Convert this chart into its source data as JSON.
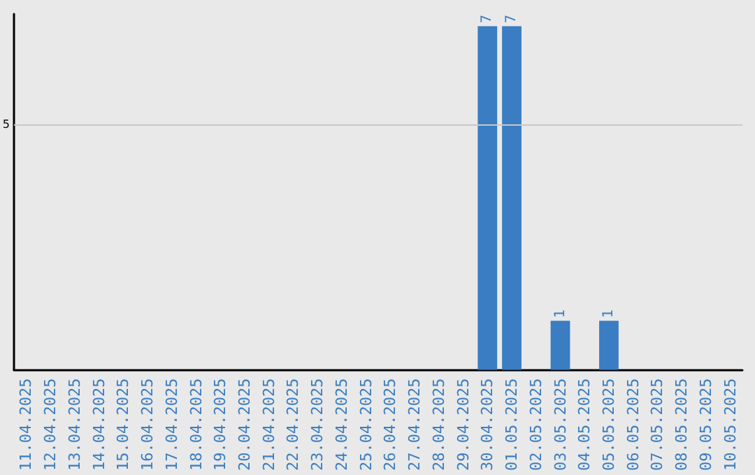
{
  "chart_data": {
    "type": "bar",
    "categories": [
      "11.04.2025",
      "12.04.2025",
      "13.04.2025",
      "14.04.2025",
      "15.04.2025",
      "16.04.2025",
      "17.04.2025",
      "18.04.2025",
      "19.04.2025",
      "20.04.2025",
      "21.04.2025",
      "22.04.2025",
      "23.04.2025",
      "24.04.2025",
      "25.04.2025",
      "26.04.2025",
      "27.04.2025",
      "28.04.2025",
      "29.04.2025",
      "30.04.2025",
      "01.05.2025",
      "02.05.2025",
      "03.05.2025",
      "04.05.2025",
      "05.05.2025",
      "06.05.2025",
      "07.05.2025",
      "08.05.2025",
      "09.05.2025",
      "10.05.2025"
    ],
    "values": [
      null,
      null,
      null,
      null,
      null,
      null,
      null,
      null,
      null,
      null,
      null,
      null,
      null,
      null,
      null,
      null,
      null,
      null,
      null,
      7,
      7,
      null,
      1,
      null,
      1,
      null,
      null,
      null,
      null,
      null
    ],
    "data_labels": true,
    "color": "#3a7dc2",
    "ylim": [
      0,
      7.25
    ],
    "ref_lines": [
      {
        "axis": "y",
        "value": 5,
        "label": "5",
        "color": "#c8c8c8"
      }
    ]
  }
}
